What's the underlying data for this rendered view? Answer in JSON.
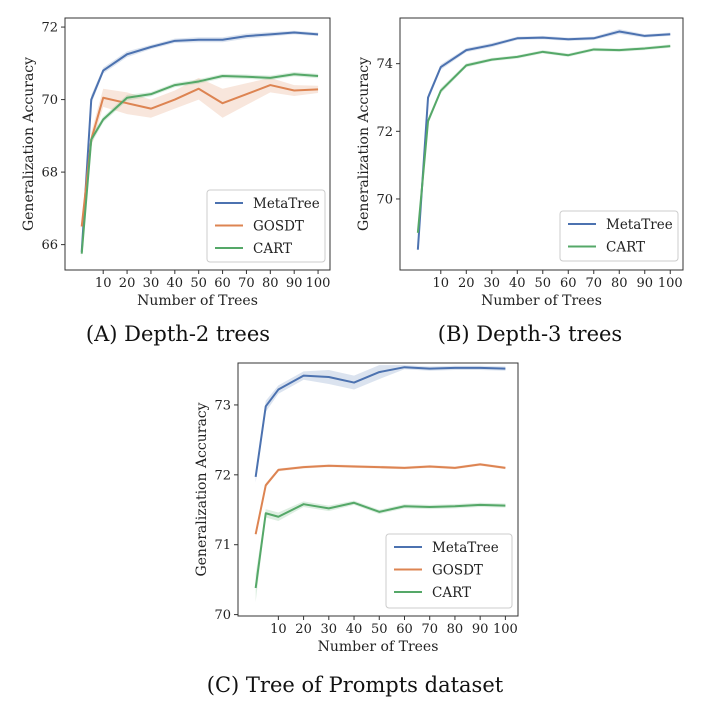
{
  "chart_data": [
    {
      "type": "line",
      "caption": "(A) Depth-2 trees",
      "xlabel": "Number of Trees",
      "ylabel": "Generalization Accuracy",
      "xticks": [
        10,
        20,
        30,
        40,
        50,
        60,
        70,
        80,
        90,
        100
      ],
      "yticks": [
        66,
        68,
        70,
        72
      ],
      "xlim": [
        -6,
        105
      ],
      "ylim": [
        65.3,
        72.25
      ],
      "legend": "lower-right",
      "x": [
        1,
        5,
        10,
        20,
        30,
        40,
        50,
        60,
        70,
        80,
        90,
        100
      ],
      "series": [
        {
          "name": "MetaTree",
          "color": "#4c72b0",
          "values": [
            65.8,
            70.0,
            70.8,
            71.25,
            71.45,
            71.62,
            71.65,
            71.65,
            71.75,
            71.8,
            71.85,
            71.8
          ],
          "band": [
            0.05,
            0.12,
            0.08,
            0.08,
            0.06,
            0.06,
            0.07,
            0.07,
            0.07,
            0.06,
            0.05,
            0.05
          ]
        },
        {
          "name": "GOSDT",
          "color": "#dd8452",
          "values": [
            66.5,
            68.9,
            70.05,
            69.9,
            69.75,
            70.0,
            70.3,
            69.9,
            70.15,
            70.4,
            70.25,
            70.28
          ],
          "band": [
            0.1,
            0.2,
            0.25,
            0.3,
            0.25,
            0.25,
            0.3,
            0.4,
            0.3,
            0.2,
            0.15,
            0.1
          ]
        },
        {
          "name": "CART",
          "color": "#55a868",
          "values": [
            65.75,
            68.9,
            69.45,
            70.05,
            70.15,
            70.4,
            70.5,
            70.65,
            70.63,
            70.6,
            70.7,
            70.65
          ],
          "band": [
            0.15,
            0.12,
            0.08,
            0.08,
            0.06,
            0.06,
            0.06,
            0.06,
            0.06,
            0.06,
            0.06,
            0.06
          ]
        }
      ]
    },
    {
      "type": "line",
      "caption": "(B) Depth-3 trees",
      "xlabel": "Number of Trees",
      "ylabel": "Generalization Accuracy",
      "xticks": [
        10,
        20,
        30,
        40,
        50,
        60,
        70,
        80,
        90,
        100
      ],
      "yticks": [
        70,
        72,
        74
      ],
      "xlim": [
        -6,
        105
      ],
      "ylim": [
        67.9,
        75.35
      ],
      "legend": "lower-right",
      "x": [
        1,
        5,
        10,
        20,
        30,
        40,
        50,
        60,
        70,
        80,
        90,
        100
      ],
      "series": [
        {
          "name": "MetaTree",
          "color": "#4c72b0",
          "values": [
            68.5,
            73.0,
            73.9,
            74.4,
            74.55,
            74.75,
            74.77,
            74.72,
            74.75,
            74.95,
            74.82,
            74.87
          ],
          "band": [
            0.05,
            0.1,
            0.08,
            0.06,
            0.06,
            0.05,
            0.05,
            0.05,
            0.05,
            0.07,
            0.05,
            0.05
          ]
        },
        {
          "name": "CART",
          "color": "#55a868",
          "values": [
            69.0,
            72.3,
            73.2,
            73.95,
            74.12,
            74.2,
            74.35,
            74.25,
            74.42,
            74.4,
            74.45,
            74.52
          ],
          "band": [
            0.08,
            0.1,
            0.08,
            0.06,
            0.05,
            0.05,
            0.05,
            0.05,
            0.05,
            0.05,
            0.05,
            0.05
          ]
        }
      ]
    },
    {
      "type": "line",
      "caption": "(C) Tree of Prompts dataset",
      "xlabel": "Number of Trees",
      "ylabel": "Generalization Accuracy",
      "xticks": [
        10,
        20,
        30,
        40,
        50,
        60,
        70,
        80,
        90,
        100
      ],
      "yticks": [
        70,
        71,
        72,
        73
      ],
      "xlim": [
        -6,
        105
      ],
      "ylim": [
        69.98,
        73.6
      ],
      "legend": "lower-right",
      "x": [
        1,
        5,
        10,
        20,
        30,
        40,
        50,
        60,
        70,
        80,
        90,
        100
      ],
      "series": [
        {
          "name": "MetaTree",
          "color": "#4c72b0",
          "values": [
            71.97,
            72.98,
            73.22,
            73.42,
            73.4,
            73.32,
            73.47,
            73.54,
            73.52,
            73.53,
            73.53,
            73.52
          ],
          "band": [
            0.08,
            0.08,
            0.06,
            0.06,
            0.1,
            0.1,
            0.1,
            0.03,
            0.03,
            0.03,
            0.03,
            0.03
          ]
        },
        {
          "name": "GOSDT",
          "color": "#dd8452",
          "values": [
            71.15,
            71.85,
            72.07,
            72.11,
            72.13,
            72.12,
            72.11,
            72.1,
            72.12,
            72.1,
            72.15,
            72.1
          ],
          "band": [
            0.03,
            0.03,
            0.02,
            0.02,
            0.02,
            0.02,
            0.02,
            0.02,
            0.02,
            0.02,
            0.02,
            0.02
          ]
        },
        {
          "name": "CART",
          "color": "#55a868",
          "values": [
            70.38,
            71.45,
            71.4,
            71.58,
            71.52,
            71.6,
            71.47,
            71.55,
            71.54,
            71.55,
            71.57,
            71.56
          ],
          "band": [
            0.2,
            0.06,
            0.06,
            0.04,
            0.04,
            0.03,
            0.03,
            0.03,
            0.03,
            0.03,
            0.03,
            0.03
          ]
        }
      ]
    }
  ]
}
